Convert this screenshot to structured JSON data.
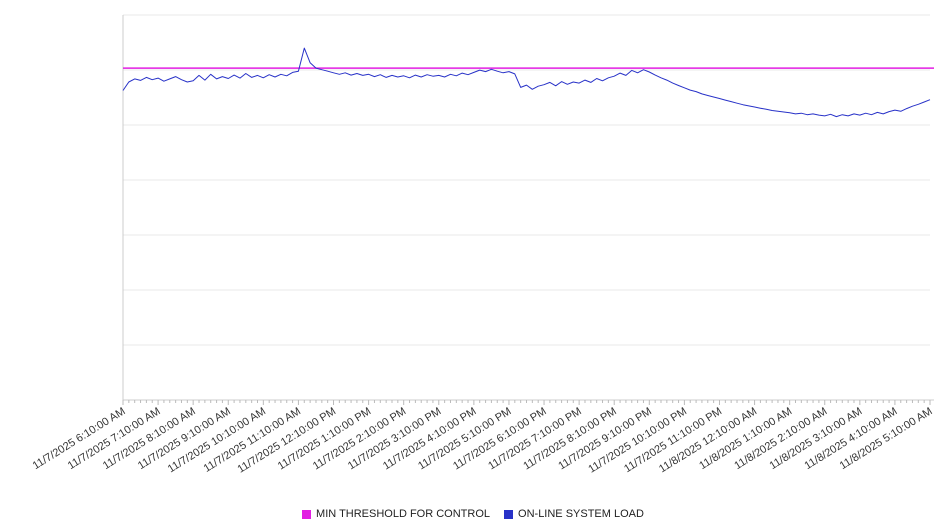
{
  "chart_data": {
    "type": "line",
    "title": "",
    "xlabel": "",
    "ylabel": "",
    "ylim": [
      0,
      100
    ],
    "grid_divisions": 7,
    "grid_on": true,
    "legend_position": "bottom",
    "label_every_n_points": 6,
    "x_labels": [
      "11/7/2025 6:10:00 AM",
      "11/7/2025 7:10:00 AM",
      "11/7/2025 8:10:00 AM",
      "11/7/2025 9:10:00 AM",
      "11/7/2025 10:10:00 AM",
      "11/7/2025 11:10:00 AM",
      "11/7/2025 12:10:00 PM",
      "11/7/2025 1:10:00 PM",
      "11/7/2025 2:10:00 PM",
      "11/7/2025 3:10:00 PM",
      "11/7/2025 4:10:00 PM",
      "11/7/2025 5:10:00 PM",
      "11/7/2025 6:10:00 PM",
      "11/7/2025 7:10:00 PM",
      "11/7/2025 8:10:00 PM",
      "11/7/2025 9:10:00 PM",
      "11/7/2025 10:10:00 PM",
      "11/7/2025 11:10:00 PM",
      "11/8/2025 12:10:00 AM",
      "11/8/2025 1:10:00 AM",
      "11/8/2025 2:10:00 AM",
      "11/8/2025 3:10:00 AM",
      "11/8/2025 4:10:00 AM",
      "11/8/2025 5:10:00 AM"
    ],
    "threshold": {
      "label": "MIN THRESHOLD FOR CONTROL",
      "value": 86.2,
      "color": "#e21ee2"
    },
    "series": [
      {
        "name": "ON-LINE SYSTEM LOAD",
        "color": "#2832c8",
        "values": [
          80.4,
          82.6,
          83.4,
          83.0,
          83.8,
          83.2,
          83.6,
          82.8,
          83.4,
          84.0,
          83.2,
          82.6,
          82.9,
          84.3,
          83.1,
          84.6,
          83.4,
          84.0,
          83.5,
          84.4,
          83.6,
          84.8,
          83.8,
          84.3,
          83.7,
          84.5,
          83.9,
          84.6,
          84.2,
          85.1,
          85.4,
          91.4,
          87.6,
          86.2,
          85.8,
          85.4,
          85.0,
          84.6,
          85.0,
          84.4,
          84.8,
          84.3,
          84.6,
          84.0,
          84.5,
          83.8,
          84.3,
          83.9,
          84.2,
          83.7,
          84.4,
          83.9,
          84.5,
          84.1,
          84.3,
          83.9,
          84.6,
          84.2,
          84.9,
          84.5,
          85.1,
          85.7,
          85.3,
          85.9,
          85.4,
          85.0,
          85.3,
          84.7,
          81.2,
          81.8,
          80.7,
          81.5,
          81.9,
          82.5,
          81.6,
          82.7,
          82.0,
          82.6,
          82.3,
          83.1,
          82.5,
          83.5,
          82.9,
          83.7,
          84.1,
          84.9,
          84.3,
          85.6,
          85.0,
          85.8,
          85.2,
          84.4,
          83.7,
          83.1,
          82.3,
          81.7,
          81.1,
          80.5,
          80.1,
          79.5,
          79.1,
          78.7,
          78.3,
          77.9,
          77.5,
          77.1,
          76.7,
          76.4,
          76.1,
          75.8,
          75.5,
          75.2,
          75.0,
          74.8,
          74.6,
          74.3,
          74.5,
          74.1,
          74.3,
          74.0,
          73.8,
          74.2,
          73.6,
          74.1,
          73.8,
          74.3,
          74.0,
          74.5,
          74.1,
          74.7,
          74.3,
          74.9,
          75.3,
          75.0,
          75.7,
          76.3,
          76.8,
          77.4,
          78.0
        ]
      }
    ]
  },
  "legend": {
    "items": [
      {
        "label": "MIN THRESHOLD FOR CONTROL",
        "color": "#e21ee2"
      },
      {
        "label": "ON-LINE SYSTEM LOAD",
        "color": "#2832c8"
      }
    ]
  }
}
